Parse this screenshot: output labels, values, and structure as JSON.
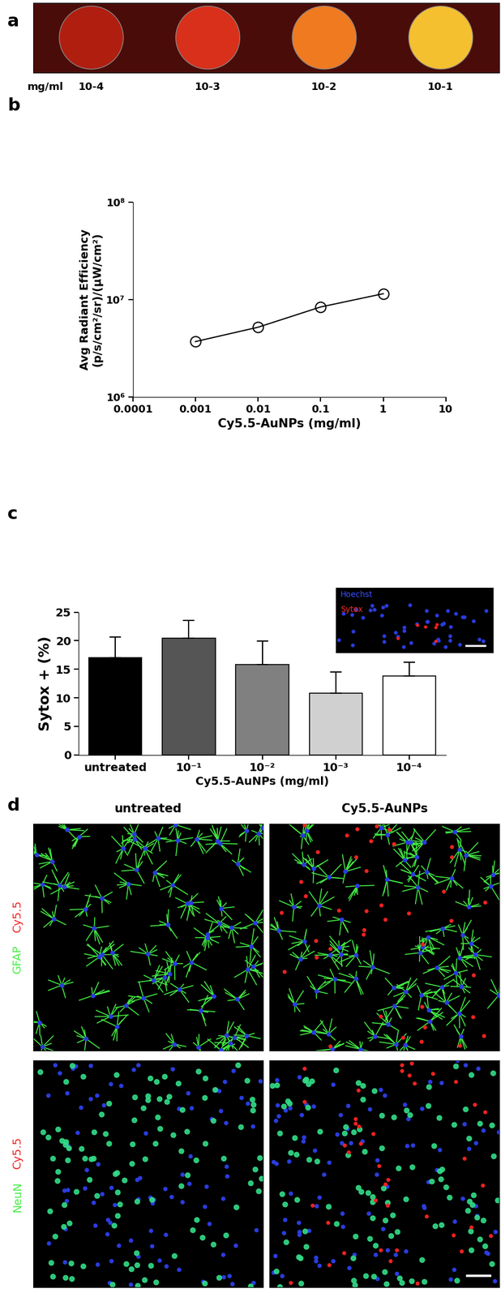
{
  "chart_data": [
    {
      "panel": "a",
      "type": "image",
      "labels_title": "mg/ml",
      "labels": [
        "10-4",
        "10-3",
        "10-2",
        "10-1"
      ],
      "colors": [
        "#b01e10",
        "#d8301a",
        "#f07a20",
        "#f5c030"
      ]
    },
    {
      "panel": "b",
      "type": "line",
      "log": true,
      "x": [
        0.001,
        0.01,
        0.1,
        1
      ],
      "values": [
        3700000,
        5200000,
        8400000,
        11500000
      ],
      "color": "#000000",
      "marker": "o",
      "line_style": "solid",
      "x_label": "Cy5.5-AuNPs (mg/ml)",
      "y_label": "Avg Radiant Efficiency\n(p/s/cm²/sr)/(µW/cm²)",
      "xlim": [
        0.0001,
        10
      ],
      "xticks": [
        0.0001,
        0.001,
        0.01,
        0.1,
        1,
        10
      ],
      "ylim": [
        1000000,
        100000000
      ],
      "yticks": [
        {
          "value": 1000000,
          "label": "10⁶"
        },
        {
          "value": 10000000,
          "label": "10⁷"
        },
        {
          "value": 100000000,
          "label": "10⁸"
        }
      ]
    },
    {
      "panel": "c",
      "type": "bar",
      "categories": [
        "untreated",
        "10⁻¹",
        "10⁻²",
        "10⁻³",
        "10⁻⁴"
      ],
      "values": [
        17.0,
        20.4,
        15.8,
        10.8,
        13.8
      ],
      "errors": [
        3.6,
        3.2,
        4.1,
        3.7,
        2.4
      ],
      "colors": [
        "#000000",
        "#555555",
        "#808080",
        "#d0d0d0",
        "#ffffff"
      ],
      "x_label": "Cy5.5-AuNPs (mg/ml)",
      "y_label": "Sytox + (%)",
      "ylim": [
        0,
        25
      ],
      "yticks": [
        0,
        5,
        10,
        15,
        20,
        25
      ],
      "inset_labels": [
        "Hoechst",
        "Sytox"
      ],
      "inset_colors": [
        "#3a50ff",
        "#ff2a2a"
      ]
    },
    {
      "panel": "d",
      "type": "image",
      "columns": [
        "untreated",
        "Cy5.5-AuNPs"
      ],
      "rows": [
        {
          "stain": "GFAP",
          "stain_color": "#44ee44",
          "marker_label": "Cy5.5",
          "marker_color": "#ee2222"
        },
        {
          "stain": "NeuN",
          "stain_color": "#44ee44",
          "marker_label": "Cy5.5",
          "marker_color": "#ee2222"
        }
      ]
    }
  ]
}
